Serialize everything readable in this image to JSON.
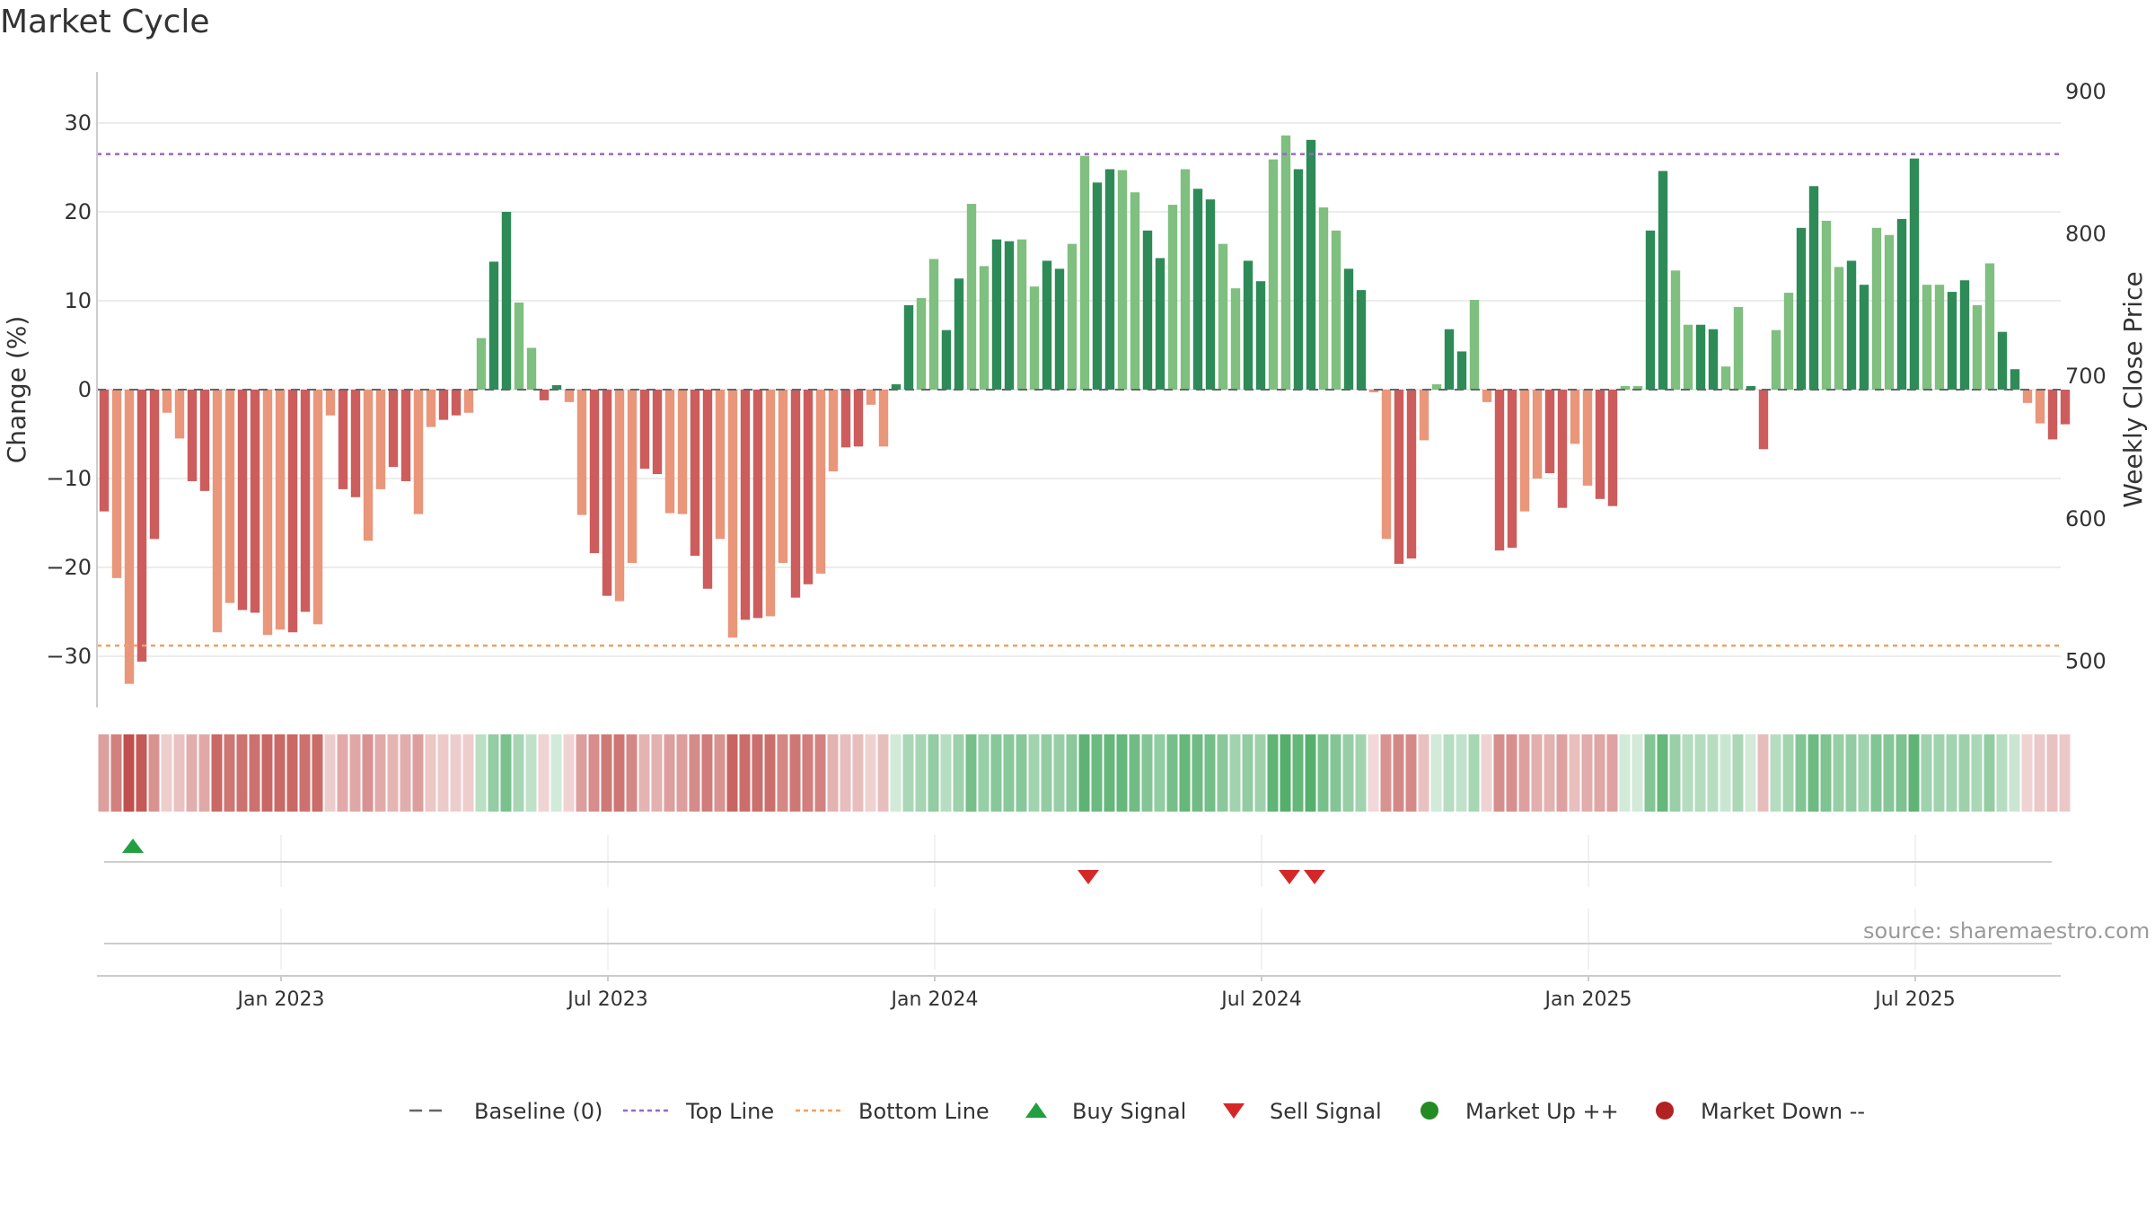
{
  "chart_data": {
    "type": "bar",
    "title": "Market Cycle",
    "ylabel_left": "Change (%)",
    "ylabel_right": "Weekly Close Price",
    "ylim": [
      -36,
      36
    ],
    "yticks_left": [
      30,
      20,
      10,
      0,
      -10,
      -20,
      -30
    ],
    "yticks_right": [
      900,
      800,
      700,
      600,
      500
    ],
    "ylim_right": [
      455,
      915
    ],
    "top_line": 26.5,
    "bottom_line": -28.8,
    "x_labels": [
      "Jan 2023",
      "Jul 2023",
      "Jan 2024",
      "Jul 2024",
      "Jan 2025",
      "Jul 2025"
    ],
    "x_label_weeks": [
      14,
      40,
      66,
      92,
      118,
      144
    ],
    "source": "source: sharemaestro.com",
    "values": [
      -13.7,
      -21.2,
      -33.1,
      -30.6,
      -16.8,
      -2.6,
      -5.5,
      -10.3,
      -11.4,
      -27.3,
      -24.0,
      -24.8,
      -25.1,
      -27.6,
      -27.0,
      -27.3,
      -25.0,
      -26.4,
      -2.9,
      -11.2,
      -12.1,
      -17.0,
      -11.2,
      -8.7,
      -10.3,
      -14.0,
      -4.2,
      -3.4,
      -2.9,
      -2.6,
      5.8,
      14.4,
      20.0,
      9.8,
      4.7,
      -1.2,
      0.5,
      -1.4,
      -14.1,
      -18.4,
      -23.2,
      -23.8,
      -19.5,
      -8.9,
      -9.5,
      -13.9,
      -14.0,
      -18.7,
      -22.4,
      -16.8,
      -27.9,
      -25.9,
      -25.7,
      -25.5,
      -19.5,
      -23.4,
      -21.9,
      -20.7,
      -9.2,
      -6.5,
      -6.4,
      -1.7,
      -6.4,
      0.6,
      9.5,
      10.3,
      14.7,
      6.7,
      12.5,
      20.9,
      13.9,
      16.9,
      16.7,
      16.9,
      11.6,
      14.5,
      13.6,
      16.4,
      26.3,
      23.3,
      24.8,
      24.7,
      22.2,
      17.9,
      14.8,
      20.8,
      24.8,
      22.6,
      21.4,
      16.4,
      11.4,
      14.5,
      12.2,
      25.9,
      28.6,
      24.8,
      28.1,
      20.5,
      17.9,
      13.6,
      11.2,
      -0.3,
      -16.8,
      -19.6,
      -19.0,
      -5.7,
      0.6,
      6.8,
      4.3,
      10.1,
      -1.4,
      -18.1,
      -17.8,
      -13.7,
      -10.0,
      -9.4,
      -13.3,
      -6.1,
      -10.8,
      -12.3,
      -13.1,
      0.4,
      0.4,
      17.9,
      24.6,
      13.4,
      7.3,
      7.3,
      6.8,
      2.6,
      9.3,
      0.4,
      -6.7,
      6.7,
      10.9,
      18.2,
      22.9,
      19.0,
      13.8,
      14.5,
      11.8,
      18.2,
      17.4,
      19.2,
      26.0,
      11.8,
      11.8,
      11.0,
      12.3,
      9.5,
      14.2,
      6.5,
      2.3,
      -1.5,
      -3.8,
      -5.6,
      -3.9
    ],
    "buy_signals": [
      2
    ],
    "sell_signals": [
      78,
      94,
      96
    ],
    "colors": {
      "up_strong": "#2e8b57",
      "up_light": "#7fbf7f",
      "down_strong": "#cd5c5c",
      "down_light": "#e9967a",
      "top_line": "#9966cc",
      "bottom_line": "#f0a060",
      "baseline": "#666666",
      "buy": "#22a040",
      "sell": "#d62728",
      "market_up": "#228b22",
      "market_down": "#b22222"
    },
    "legend": [
      {
        "key": "baseline",
        "label": "Baseline (0)"
      },
      {
        "key": "top",
        "label": "Top Line"
      },
      {
        "key": "bottom",
        "label": "Bottom Line"
      },
      {
        "key": "buy",
        "label": "Buy Signal"
      },
      {
        "key": "sell",
        "label": "Sell Signal"
      },
      {
        "key": "up",
        "label": "Market Up ++"
      },
      {
        "key": "down",
        "label": "Market Down --"
      }
    ]
  }
}
